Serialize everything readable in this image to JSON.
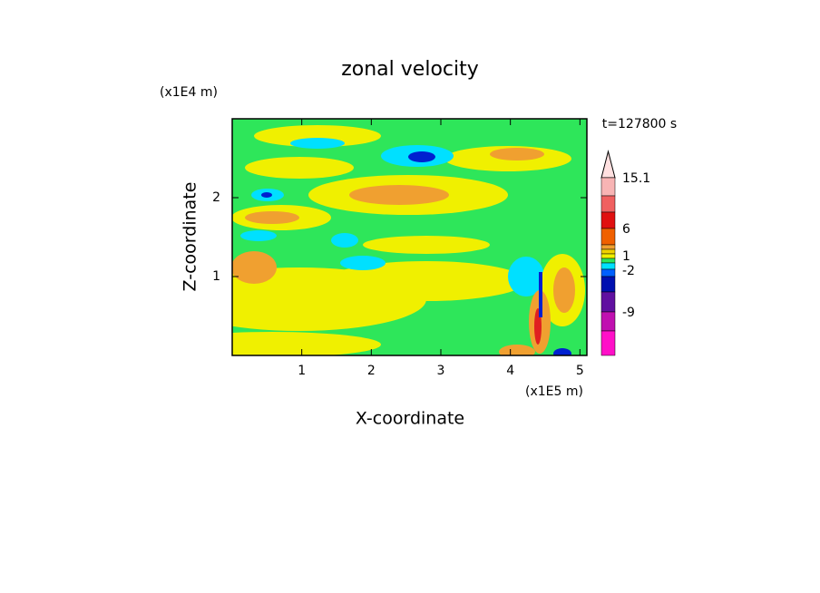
{
  "chart_data": {
    "type": "contour",
    "title": "zonal velocity",
    "x_label": "X-coordinate",
    "y_label": "Z-coordinate",
    "x_unit": "(x1E5 m)",
    "y_unit": "(x1E4 m)",
    "annotation": "t=127800 s",
    "xlim": [
      0,
      5.1
    ],
    "ylim": [
      0,
      3
    ],
    "xticks": [
      1,
      2,
      3,
      4,
      5
    ],
    "yticks": [
      1,
      2
    ],
    "colorbar_labels": [
      15.1,
      6,
      1,
      -2,
      -9
    ]
  }
}
